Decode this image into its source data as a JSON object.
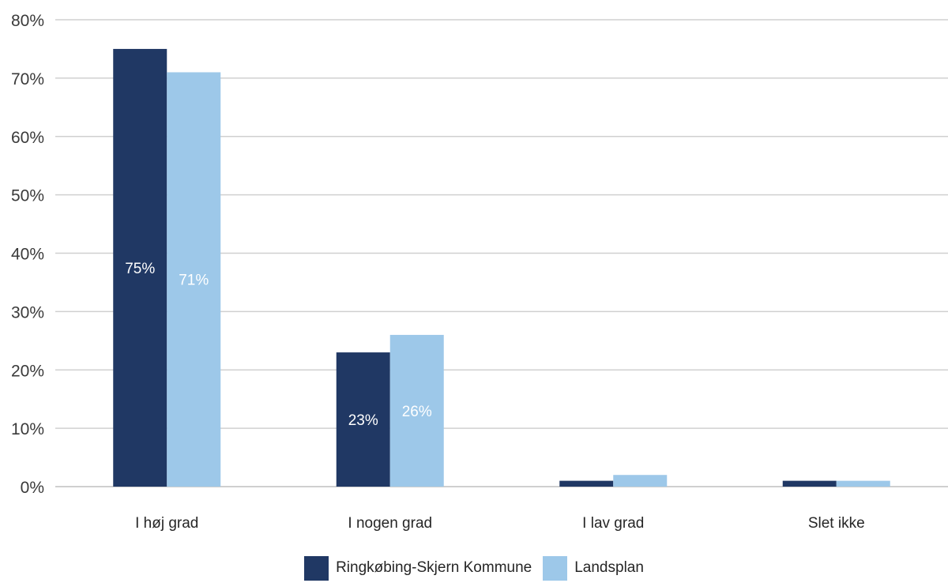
{
  "chart_data": {
    "type": "bar",
    "title": "",
    "xlabel": "",
    "ylabel": "",
    "categories": [
      "I høj grad",
      "I nogen grad",
      "I lav grad",
      "Slet ikke"
    ],
    "ylim": [
      0,
      80
    ],
    "y_ticks": [
      "0%",
      "10%",
      "20%",
      "30%",
      "40%",
      "50%",
      "60%",
      "70%",
      "80%"
    ],
    "y_tick_values": [
      0,
      10,
      20,
      30,
      40,
      50,
      60,
      70,
      80
    ],
    "grid": true,
    "legend_position": "bottom",
    "series": [
      {
        "name": "Ringkøbing-Skjern Kommune",
        "color": "#203864",
        "values": [
          75,
          23,
          1,
          1
        ],
        "labels": [
          "75%",
          "23%",
          "",
          ""
        ]
      },
      {
        "name": "Landsplan",
        "color": "#9DC8E9",
        "values": [
          71,
          26,
          2,
          1
        ],
        "labels": [
          "71%",
          "26%",
          "",
          ""
        ]
      }
    ]
  }
}
